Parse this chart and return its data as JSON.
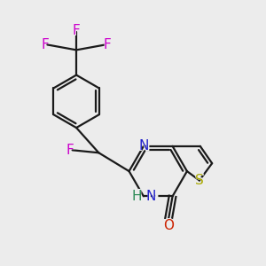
{
  "bg_color": "#ececec",
  "bond_color": "#1a1a1a",
  "bond_width": 1.6,
  "atom_labels": {
    "F_top": {
      "text": "F",
      "color": "#cc00cc"
    },
    "F_left": {
      "text": "F",
      "color": "#cc00cc"
    },
    "F_right": {
      "text": "F",
      "color": "#cc00cc"
    },
    "F_methine": {
      "text": "F",
      "color": "#cc00cc"
    },
    "N_top": {
      "text": "N",
      "color": "#2222cc"
    },
    "HN": {
      "text": "H",
      "color": "#2d8b57"
    },
    "N_bot": {
      "text": "N",
      "color": "#2222cc"
    },
    "S": {
      "text": "S",
      "color": "#aaaa00"
    },
    "O": {
      "text": "O",
      "color": "#cc2200"
    }
  },
  "fontsize": 11
}
